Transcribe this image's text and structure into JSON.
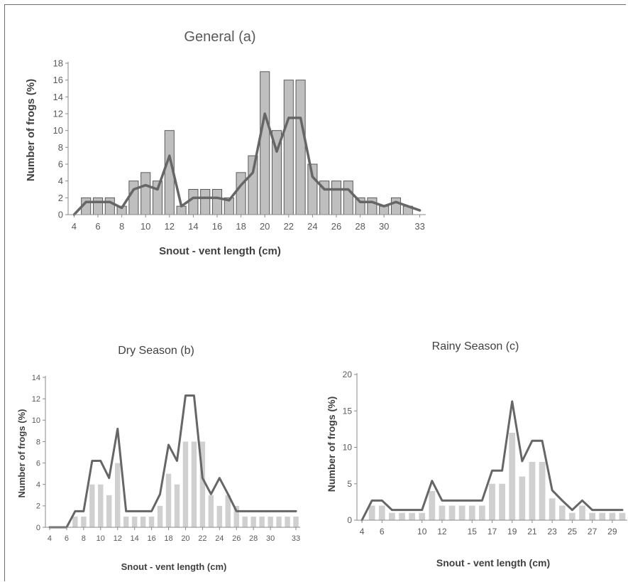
{
  "colors": {
    "bar": "#bfbfbf",
    "bar_stroke": "#595959",
    "line": "#666666",
    "axis": "#8a8a8a",
    "text": "#404040"
  },
  "chart_data": [
    {
      "id": "a",
      "type": "bar",
      "title": "General (a)",
      "xlabel": "Snout - vent length (cm)",
      "ylabel": "Number of frogs (%)",
      "x": [
        4,
        5,
        6,
        7,
        8,
        9,
        10,
        11,
        12,
        13,
        14,
        15,
        16,
        17,
        18,
        19,
        20,
        21,
        22,
        23,
        24,
        25,
        26,
        27,
        28,
        29,
        30,
        31,
        32,
        33
      ],
      "values": [
        0,
        2,
        2,
        2,
        1,
        4,
        5,
        4,
        10,
        1,
        3,
        3,
        3,
        2,
        5,
        7,
        17,
        10,
        16,
        16,
        6,
        4,
        4,
        4,
        2,
        2,
        1,
        2,
        1,
        0
      ],
      "trend": [
        0,
        1.5,
        1.5,
        1.5,
        0.8,
        3,
        3.5,
        3,
        7,
        1,
        2,
        2,
        2,
        1.7,
        3.5,
        5,
        12,
        7.5,
        11.5,
        11.5,
        4.5,
        3,
        3,
        3,
        1.5,
        1.5,
        1,
        1.5,
        1,
        0.5
      ],
      "x_ticks": [
        4,
        6,
        8,
        10,
        12,
        14,
        16,
        18,
        20,
        22,
        24,
        26,
        28,
        30,
        33
      ],
      "y_ticks": [
        0,
        2,
        4,
        6,
        8,
        10,
        12,
        14,
        16,
        18
      ],
      "ylim": [
        0,
        18
      ]
    },
    {
      "id": "b",
      "type": "bar",
      "title": "Dry Season (b)",
      "xlabel": "Snout - vent length (cm)",
      "ylabel": "Number of frogs (%)",
      "x": [
        4,
        5,
        6,
        7,
        8,
        9,
        10,
        11,
        12,
        13,
        14,
        15,
        16,
        17,
        18,
        19,
        20,
        21,
        22,
        23,
        24,
        25,
        26,
        27,
        28,
        29,
        30,
        31,
        32,
        33
      ],
      "values": [
        0,
        0,
        0,
        1,
        1,
        4,
        4,
        3,
        6,
        1,
        1,
        1,
        1,
        2,
        5,
        4,
        8,
        8,
        8,
        3,
        2,
        3,
        2,
        1,
        1,
        1,
        1,
        1,
        1,
        1
      ],
      "trend": [
        0,
        0,
        0,
        1.5,
        1.5,
        6.2,
        6.2,
        4.6,
        9.2,
        1.5,
        1.5,
        1.5,
        1.5,
        3.1,
        7.7,
        6.2,
        12.3,
        12.3,
        4.6,
        3.1,
        4.6,
        3.1,
        1.5,
        1.5,
        1.5,
        1.5,
        1.5,
        1.5,
        1.5,
        1.5
      ],
      "x_ticks": [
        4,
        6,
        8,
        10,
        12,
        14,
        16,
        18,
        20,
        22,
        24,
        26,
        28,
        30,
        33
      ],
      "y_ticks": [
        0,
        2,
        4,
        6,
        8,
        10,
        12,
        14
      ],
      "ylim": [
        0,
        14
      ]
    },
    {
      "id": "c",
      "type": "bar",
      "title": "Rainy Season (c)",
      "xlabel": "Snout - vent length (cm)",
      "ylabel": "Number of frogs (%)",
      "x": [
        4,
        5,
        6,
        7,
        8,
        9,
        10,
        11,
        12,
        13,
        14,
        15,
        16,
        17,
        18,
        19,
        20,
        21,
        22,
        23,
        24,
        25,
        26,
        27,
        28,
        29,
        30
      ],
      "values": [
        0,
        2,
        2,
        1,
        1,
        1,
        1,
        4,
        2,
        2,
        2,
        2,
        2,
        5,
        5,
        12,
        6,
        8,
        8,
        3,
        2,
        1,
        2,
        1,
        1,
        1,
        1
      ],
      "trend": [
        0,
        2.7,
        2.7,
        1.4,
        1.4,
        1.4,
        1.4,
        5.4,
        2.7,
        2.7,
        2.7,
        2.7,
        2.7,
        6.8,
        6.8,
        16.3,
        8.1,
        10.9,
        10.9,
        4.1,
        2.7,
        1.4,
        2.7,
        1.4,
        1.4,
        1.4,
        1.4
      ],
      "x_ticks": [
        4,
        6,
        10,
        12,
        15,
        17,
        19,
        21,
        23,
        25,
        27,
        29
      ],
      "y_ticks": [
        0,
        5,
        10,
        15,
        20
      ],
      "ylim": [
        0,
        20
      ]
    }
  ]
}
